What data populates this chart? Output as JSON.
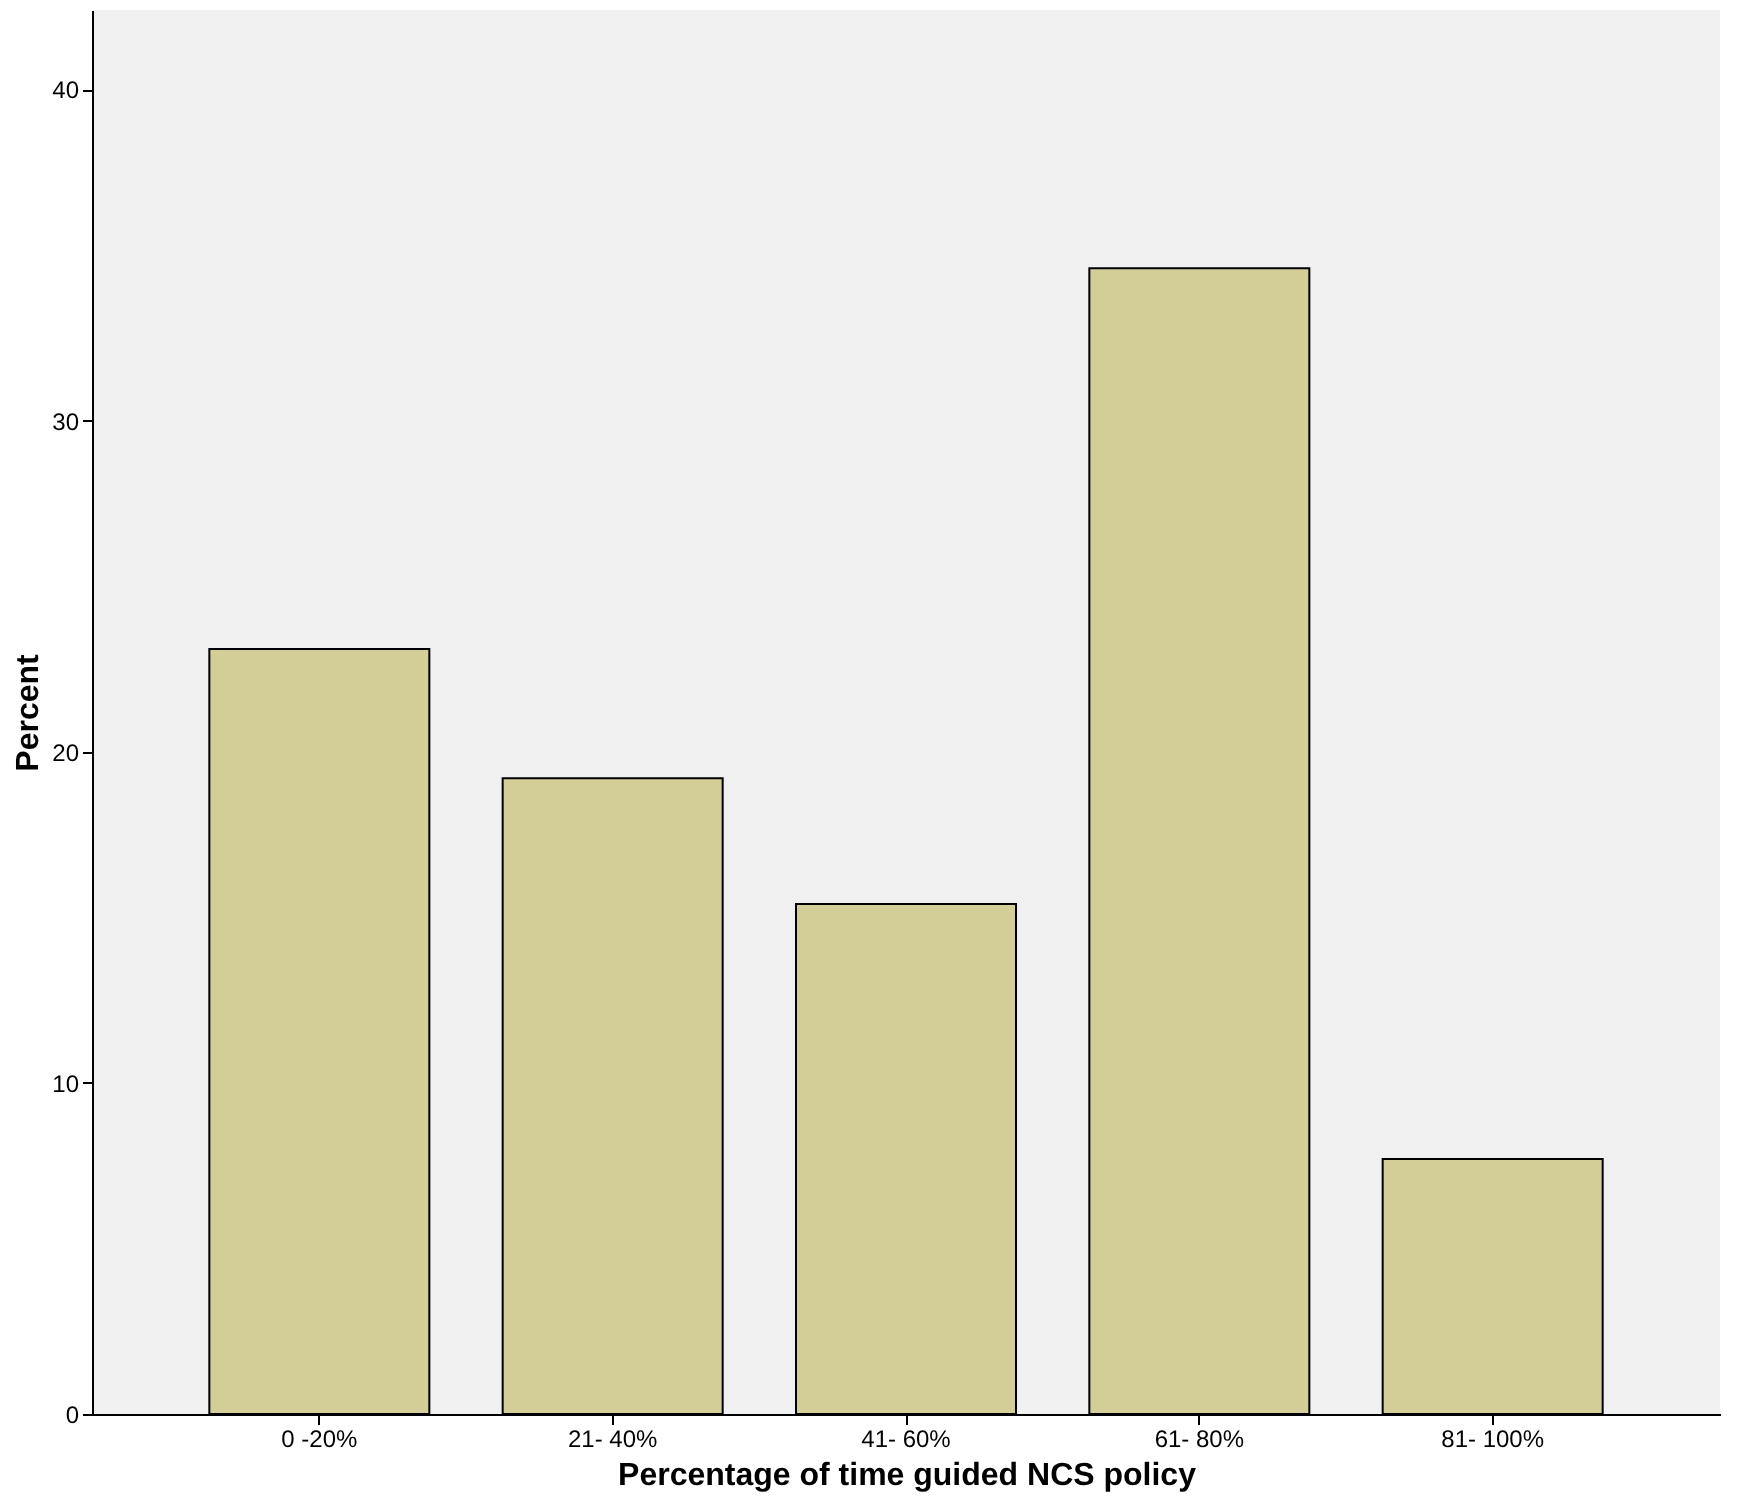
{
  "chart_data": {
    "type": "bar",
    "xlabel": "Percentage of time guided NCS policy",
    "ylabel": "Percent",
    "categories": [
      "0 -20%",
      "21- 40%",
      "41- 60%",
      "61- 80%",
      "81- 100%"
    ],
    "values": [
      23.1,
      19.2,
      15.4,
      34.6,
      7.7
    ],
    "color": "#d3ce98",
    "ylim": [
      0,
      42.4
    ],
    "yticks": [
      0,
      10,
      20,
      30,
      40
    ],
    "grid": false
  }
}
